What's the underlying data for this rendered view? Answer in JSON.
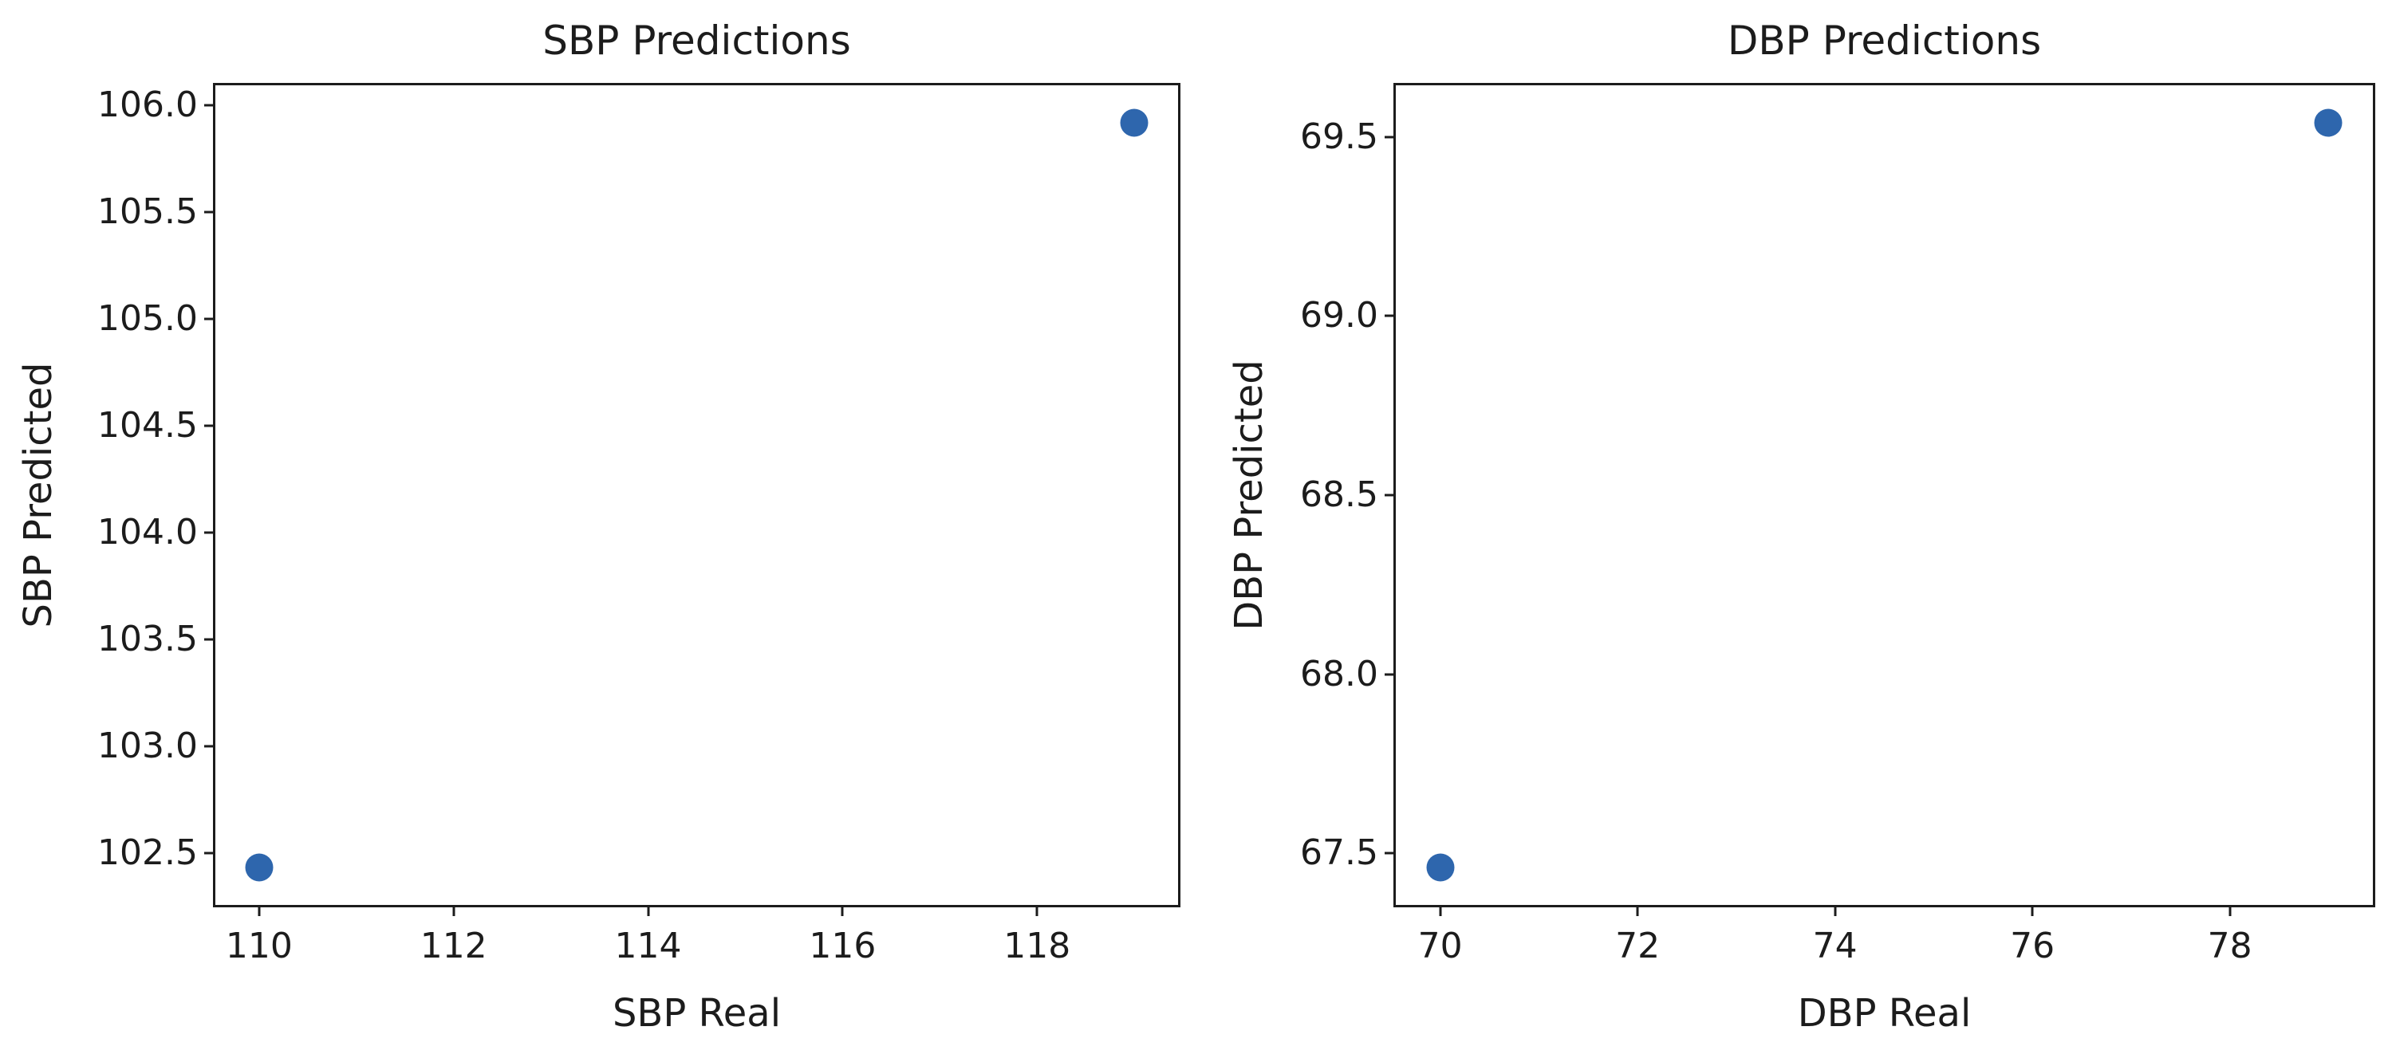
{
  "figure": {
    "background": "#ffffff",
    "text_color": "#1c1c1c",
    "marker_color": "#2e66ad"
  },
  "chart_data": [
    {
      "type": "scatter",
      "title": "SBP Predictions",
      "xlabel": "SBP Real",
      "ylabel": "SBP Predicted",
      "xlim": [
        109.55,
        119.45
      ],
      "ylim": [
        102.256,
        106.094
      ],
      "xticks": [
        "110",
        "112",
        "114",
        "116",
        "118"
      ],
      "yticks": [
        "102.5",
        "103.0",
        "103.5",
        "104.0",
        "104.5",
        "105.0",
        "105.5",
        "106.0"
      ],
      "points": [
        {
          "x": 110,
          "y": 102.43
        },
        {
          "x": 119,
          "y": 105.92
        }
      ],
      "marker_color": "#2e66ad",
      "grid": false,
      "legend": null
    },
    {
      "type": "scatter",
      "title": "DBP Predictions",
      "xlabel": "DBP Real",
      "ylabel": "DBP Predicted",
      "xlim": [
        69.55,
        79.45
      ],
      "ylim": [
        67.356,
        69.644
      ],
      "xticks": [
        "70",
        "72",
        "74",
        "76",
        "78"
      ],
      "yticks": [
        "67.5",
        "68.0",
        "68.5",
        "69.0",
        "69.5"
      ],
      "points": [
        {
          "x": 70,
          "y": 67.46
        },
        {
          "x": 79,
          "y": 69.54
        }
      ],
      "marker_color": "#2e66ad",
      "grid": false,
      "legend": null
    }
  ]
}
